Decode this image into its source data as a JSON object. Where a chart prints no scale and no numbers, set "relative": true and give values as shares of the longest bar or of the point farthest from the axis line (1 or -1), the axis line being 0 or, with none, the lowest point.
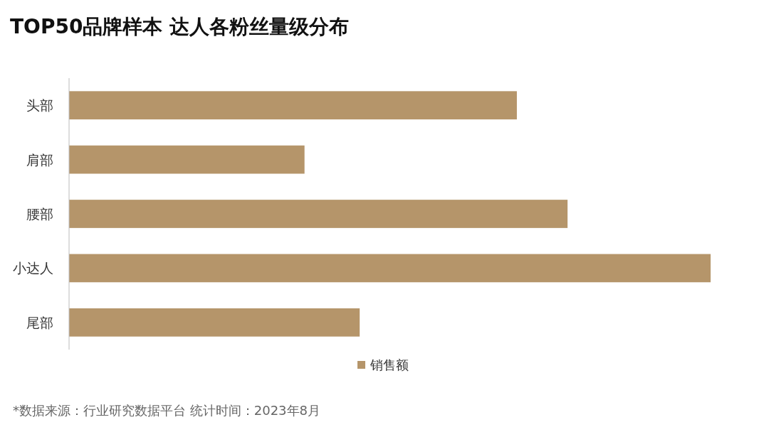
{
  "chart_data": {
    "type": "bar",
    "orientation": "horizontal",
    "relative": true,
    "title": "TOP50品牌样本 达人各粉丝量级分布",
    "categories": [
      "头部",
      "肩部",
      "腰部",
      "小达人",
      "尾部"
    ],
    "series": [
      {
        "name": "销售额",
        "color": "#b5956a",
        "values": [
          0.698,
          0.367,
          0.777,
          1,
          0.453
        ]
      }
    ],
    "legend": "bottom",
    "annotations": [
      "*数据来源：行业研究数据平台 统计时间：2023年8月"
    ]
  }
}
